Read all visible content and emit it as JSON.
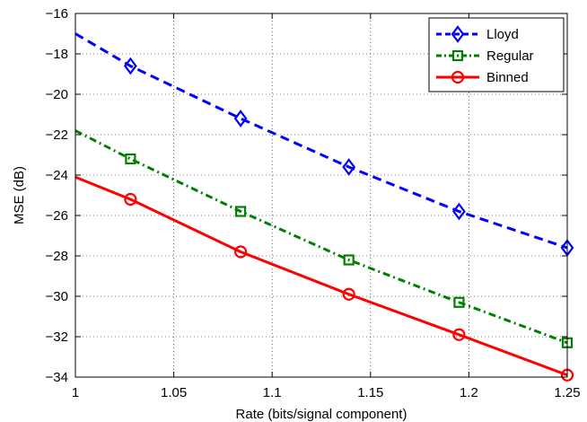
{
  "chart_data": {
    "type": "line",
    "title": "",
    "xlabel": "Rate (bits/signal component)",
    "ylabel": "MSE (dB)",
    "xlim": [
      1,
      1.25
    ],
    "ylim": [
      -34,
      -16
    ],
    "xticks": [
      1,
      1.05,
      1.1,
      1.15,
      1.2,
      1.25
    ],
    "xtick_labels": [
      "1",
      "1.05",
      "1.1",
      "1.15",
      "1.2",
      "1.25"
    ],
    "yticks": [
      -34,
      -32,
      -30,
      -28,
      -26,
      -24,
      -22,
      -20,
      -18,
      -16
    ],
    "ytick_labels": [
      "−34",
      "−32",
      "−30",
      "−28",
      "−26",
      "−24",
      "−22",
      "−20",
      "−18",
      "−16"
    ],
    "grid": "dotted",
    "legend_position": "top-right",
    "series": [
      {
        "name": "Lloyd",
        "color": "#0000ff",
        "line_style": "dashed",
        "marker": "diamond",
        "x": [
          1,
          1.028,
          1.084,
          1.139,
          1.195,
          1.25
        ],
        "y": [
          -17.0,
          -18.6,
          -21.2,
          -23.6,
          -25.8,
          -27.6
        ],
        "marker_x": [
          1.028,
          1.084,
          1.139,
          1.195,
          1.25
        ]
      },
      {
        "name": "Regular",
        "color": "#008000",
        "line_style": "dash-dot",
        "marker": "square",
        "x": [
          1,
          1.028,
          1.084,
          1.139,
          1.195,
          1.25
        ],
        "y": [
          -21.8,
          -23.2,
          -25.8,
          -28.2,
          -30.3,
          -32.3
        ],
        "marker_x": [
          1.028,
          1.084,
          1.139,
          1.195,
          1.25
        ]
      },
      {
        "name": "Binned",
        "color": "#ff0000",
        "line_style": "solid",
        "marker": "circle",
        "x": [
          1,
          1.028,
          1.084,
          1.139,
          1.195,
          1.25
        ],
        "y": [
          -24.1,
          -25.2,
          -27.8,
          -29.9,
          -31.9,
          -33.9
        ],
        "marker_x": [
          1.028,
          1.084,
          1.139,
          1.195,
          1.25
        ]
      }
    ]
  }
}
